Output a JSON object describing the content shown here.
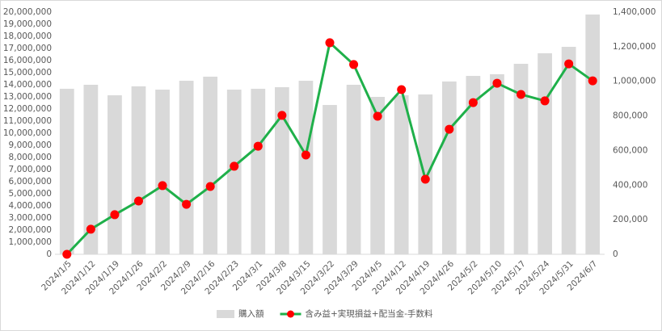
{
  "chart_data": {
    "type": "bar+line",
    "categories": [
      "2024/1/5",
      "2024/1/12",
      "2024/1/19",
      "2024/1/26",
      "2024/2/2",
      "2024/2/9",
      "2024/2/16",
      "2024/2/23",
      "2024/3/1",
      "2024/3/8",
      "2024/3/15",
      "2024/3/22",
      "2024/3/29",
      "2024/4/5",
      "2024/4/12",
      "2024/4/19",
      "2024/4/26",
      "2024/5/2",
      "2024/5/10",
      "2024/5/17",
      "2024/5/24",
      "2024/5/31",
      "2024/6/7"
    ],
    "series": [
      {
        "name": "購入額",
        "type": "bar",
        "color": "#d9d9d9",
        "values": [
          13670000,
          14000000,
          13130000,
          13870000,
          13600000,
          14330000,
          14670000,
          13600000,
          13670000,
          13800000,
          14330000,
          12330000,
          14000000,
          13000000,
          13130000,
          13200000,
          14270000,
          14730000,
          14870000,
          15730000,
          16600000,
          17130000,
          19800000
        ]
      },
      {
        "name": "含み益+実現損益+配当金-手数料",
        "type": "line",
        "axis": "y2",
        "color": "#1fb04a",
        "marker_color": "#ff0000",
        "values": [
          0,
          145000,
          229000,
          308000,
          397000,
          289000,
          392000,
          509000,
          625000,
          803000,
          574000,
          1223000,
          1097000,
          798000,
          952000,
          434000,
          723000,
          877000,
          989000,
          924000,
          887000,
          1101000,
          1003000
        ]
      }
    ],
    "ylim": [
      0,
      20000000
    ],
    "yticks": [
      0,
      {
        "value": 1000000,
        "label": "1,000,000"
      },
      {
        "value": 2000000,
        "label": "2,000,000"
      },
      {
        "value": 3000000,
        "label": "3,000,000"
      },
      {
        "value": 4000000,
        "label": "4,000,000"
      },
      {
        "value": 5000000,
        "label": "5,000,000"
      },
      {
        "value": 6000000,
        "label": "6,000,000"
      },
      {
        "value": 7000000,
        "label": "7,000,000"
      },
      {
        "value": 8000000,
        "label": "8,000,000"
      },
      {
        "value": 9000000,
        "label": "9,000,000"
      },
      {
        "value": 10000000,
        "label": "10,000,000"
      },
      {
        "value": 11000000,
        "label": "11,000,000"
      },
      {
        "value": 12000000,
        "label": "12,000,000"
      },
      {
        "value": 13000000,
        "label": "13,000,000"
      },
      {
        "value": 14000000,
        "label": "14,000,000"
      },
      {
        "value": 15000000,
        "label": "15,000,000"
      },
      {
        "value": 16000000,
        "label": "16,000,000"
      },
      {
        "value": 17000000,
        "label": "17,000,000"
      },
      {
        "value": 18000000,
        "label": "18,000,000"
      },
      {
        "value": 19000000,
        "label": "19,000,000"
      },
      {
        "value": 20000000,
        "label": "20,000,000"
      }
    ],
    "y2lim": [
      0,
      1400000
    ],
    "y2ticks": [
      0,
      {
        "value": 200000,
        "label": "200,000"
      },
      {
        "value": 400000,
        "label": "400,000"
      },
      {
        "value": 600000,
        "label": "600,000"
      },
      {
        "value": 800000,
        "label": "800,000"
      },
      {
        "value": 1000000,
        "label": "1,000,000"
      },
      {
        "value": 1200000,
        "label": "1,200,000"
      },
      {
        "value": 1400000,
        "label": "1,400,000"
      }
    ],
    "legend": "bottom"
  }
}
